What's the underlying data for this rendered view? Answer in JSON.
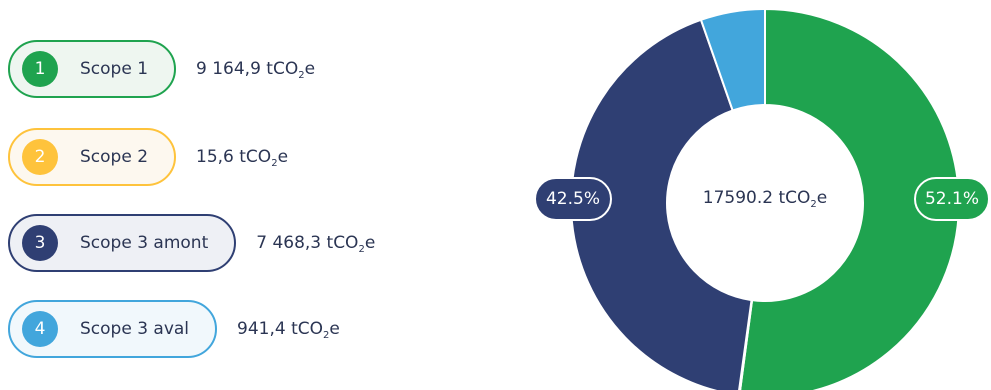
{
  "legend": [
    {
      "number": "1",
      "label": "Scope 1",
      "value": "9 164,9 tCO",
      "unit_sub": "2",
      "unit_suffix": "e",
      "color": "#1fa34f",
      "fill": "#eef6f0"
    },
    {
      "number": "2",
      "label": "Scope 2",
      "value": "15,6 tCO",
      "unit_sub": "2",
      "unit_suffix": "e",
      "color": "#fec33c",
      "fill": "#fdf8ef"
    },
    {
      "number": "3",
      "label": "Scope 3 amont",
      "value": "7 468,3 tCO",
      "unit_sub": "2",
      "unit_suffix": "e",
      "color": "#2f3f73",
      "fill": "#eef0f5"
    },
    {
      "number": "4",
      "label": "Scope 3 aval",
      "value": "941,4 tCO",
      "unit_sub": "2",
      "unit_suffix": "e",
      "color": "#42a6dc",
      "fill": "#f1f8fc"
    }
  ],
  "chart_data": {
    "type": "pie",
    "variant": "donut",
    "categories": [
      "Scope 1",
      "Scope 2",
      "Scope 3 amont",
      "Scope 3 aval"
    ],
    "values": [
      9164.9,
      15.6,
      7468.3,
      941.4
    ],
    "unit": "tCO2e",
    "colors": [
      "#1fa34f",
      "#fec33c",
      "#2f3f73",
      "#42a6dc"
    ],
    "total_label": "17590.2 tCO",
    "total_sub": "2",
    "total_suffix": "e",
    "percent_labels": [
      "52.1%",
      "42.5%"
    ]
  }
}
